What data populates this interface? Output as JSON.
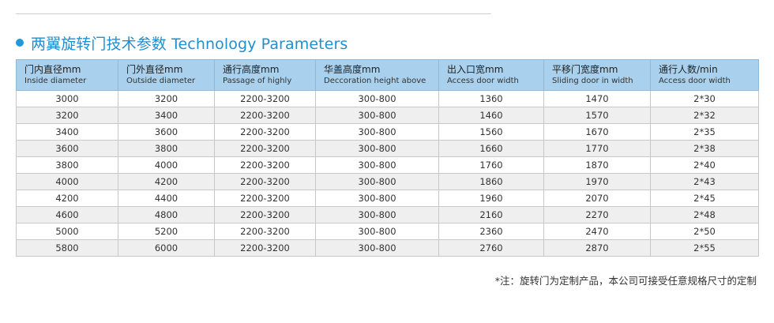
{
  "heading": "两翼旋转门技术参数 Technology Parameters",
  "columns": [
    {
      "zh": "门内直径mm",
      "en": "Inside diameter"
    },
    {
      "zh": "门外直径mm",
      "en": "Outside diameter"
    },
    {
      "zh": "通行高度mm",
      "en": "Passage of highly"
    },
    {
      "zh": "华盖高度mm",
      "en": "Deccoration height above"
    },
    {
      "zh": "出入口宽mm",
      "en": "Access door width"
    },
    {
      "zh": "平移门宽度mm",
      "en": "Sliding door in width"
    },
    {
      "zh": "通行人数/min",
      "en": "Access door width"
    }
  ],
  "rows": [
    [
      "3000",
      "3200",
      "2200-3200",
      "300-800",
      "1360",
      "1470",
      "2*30"
    ],
    [
      "3200",
      "3400",
      "2200-3200",
      "300-800",
      "1460",
      "1570",
      "2*32"
    ],
    [
      "3400",
      "3600",
      "2200-3200",
      "300-800",
      "1560",
      "1670",
      "2*35"
    ],
    [
      "3600",
      "3800",
      "2200-3200",
      "300-800",
      "1660",
      "1770",
      "2*38"
    ],
    [
      "3800",
      "4000",
      "2200-3200",
      "300-800",
      "1760",
      "1870",
      "2*40"
    ],
    [
      "4000",
      "4200",
      "2200-3200",
      "300-800",
      "1860",
      "1970",
      "2*43"
    ],
    [
      "4200",
      "4400",
      "2200-3200",
      "300-800",
      "1960",
      "2070",
      "2*45"
    ],
    [
      "4600",
      "4800",
      "2200-3200",
      "300-800",
      "2160",
      "2270",
      "2*48"
    ],
    [
      "5000",
      "5200",
      "2200-3200",
      "300-800",
      "2360",
      "2470",
      "2*50"
    ],
    [
      "5800",
      "6000",
      "2200-3200",
      "300-800",
      "2760",
      "2870",
      "2*55"
    ]
  ],
  "note": "*注：旋转门为定制产品，本公司可接受任意规格尺寸的定制",
  "colors": {
    "accent": "#1f8fd0",
    "header_bg": "#a9d0ec",
    "alt_row_bg": "#efefef"
  }
}
